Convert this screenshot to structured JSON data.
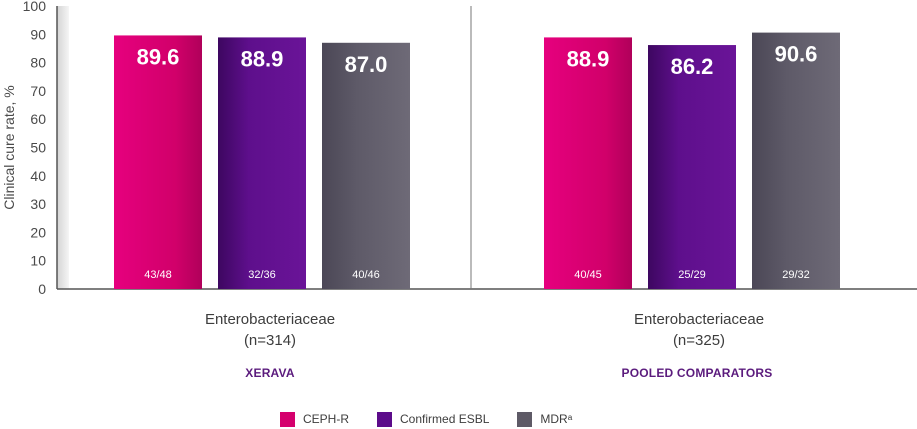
{
  "chart_data": {
    "type": "bar",
    "ylabel": "Clinical cure rate, %",
    "ylim": [
      0,
      100
    ],
    "yticks": [
      0,
      10,
      20,
      30,
      40,
      50,
      60,
      70,
      80,
      90,
      100
    ],
    "groups": [
      {
        "label": "Enterobacteriaceae",
        "n": "(n=314)",
        "sublabel": "XERAVA",
        "bars": [
          {
            "series": "CEPH-R",
            "value": 89.6,
            "label": "89.6",
            "fraction": "43/48"
          },
          {
            "series": "Confirmed ESBL",
            "value": 88.9,
            "label": "88.9",
            "fraction": "32/36"
          },
          {
            "series": "MDRᵃ",
            "value": 87.0,
            "label": "87.0",
            "fraction": "40/46"
          }
        ]
      },
      {
        "label": "Enterobacteriaceae",
        "n": "(n=325)",
        "sublabel": "POOLED COMPARATORS",
        "bars": [
          {
            "series": "CEPH-R",
            "value": 88.9,
            "label": "88.9",
            "fraction": "40/45"
          },
          {
            "series": "Confirmed ESBL",
            "value": 86.2,
            "label": "86.2",
            "fraction": "25/29"
          },
          {
            "series": "MDRᵃ",
            "value": 90.6,
            "label": "90.6",
            "fraction": "29/32"
          }
        ]
      }
    ],
    "legend": [
      {
        "name": "CEPH-R",
        "color": "#d5006d"
      },
      {
        "name": "Confirmed ESBL",
        "color": "#5c0b8a"
      },
      {
        "name": "MDRᵃ",
        "color": "#5e5a66"
      }
    ],
    "legend_position": "bottom"
  }
}
